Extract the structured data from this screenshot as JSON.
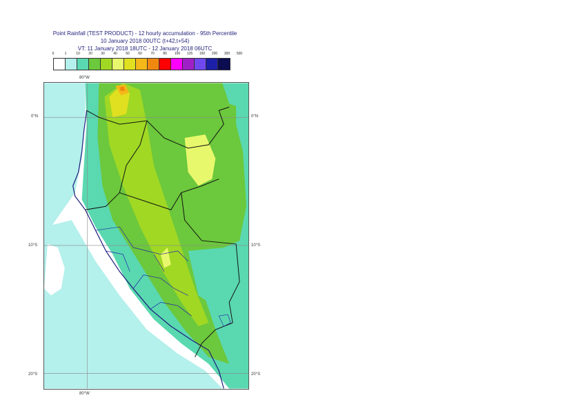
{
  "title": {
    "line1": "Point Rainfall (TEST PRODUCT) - 12 hourly accumulation - 95th Percentile",
    "line2": "10 January 2018 00UTC (t+42,t+54)",
    "line3": "VT: 11 January 2018 18UTC - 12 January 2018 06UTC"
  },
  "legend": {
    "labels": [
      "0",
      "1",
      "10",
      "20",
      "30",
      "40",
      "50",
      "60",
      "70",
      "80",
      "100",
      "125",
      "150",
      "200",
      "300",
      "500"
    ],
    "colors": [
      "#ffffff",
      "#b4f0ec",
      "#5ad8b0",
      "#6cc83c",
      "#a0d824",
      "#e8f86c",
      "#e0e020",
      "#f4b818",
      "#f08810",
      "#ff0000",
      "#ff00ff",
      "#a020c8",
      "#7048f0",
      "#1c20a8",
      "#0c0c50"
    ]
  },
  "axes": {
    "lon_top": "80°W",
    "lon_bottom": "80°W",
    "lat_left": [
      "0°N",
      "10°S",
      "20°S"
    ],
    "lat_right": [
      "0°N",
      "10°S",
      "20°S"
    ]
  }
}
